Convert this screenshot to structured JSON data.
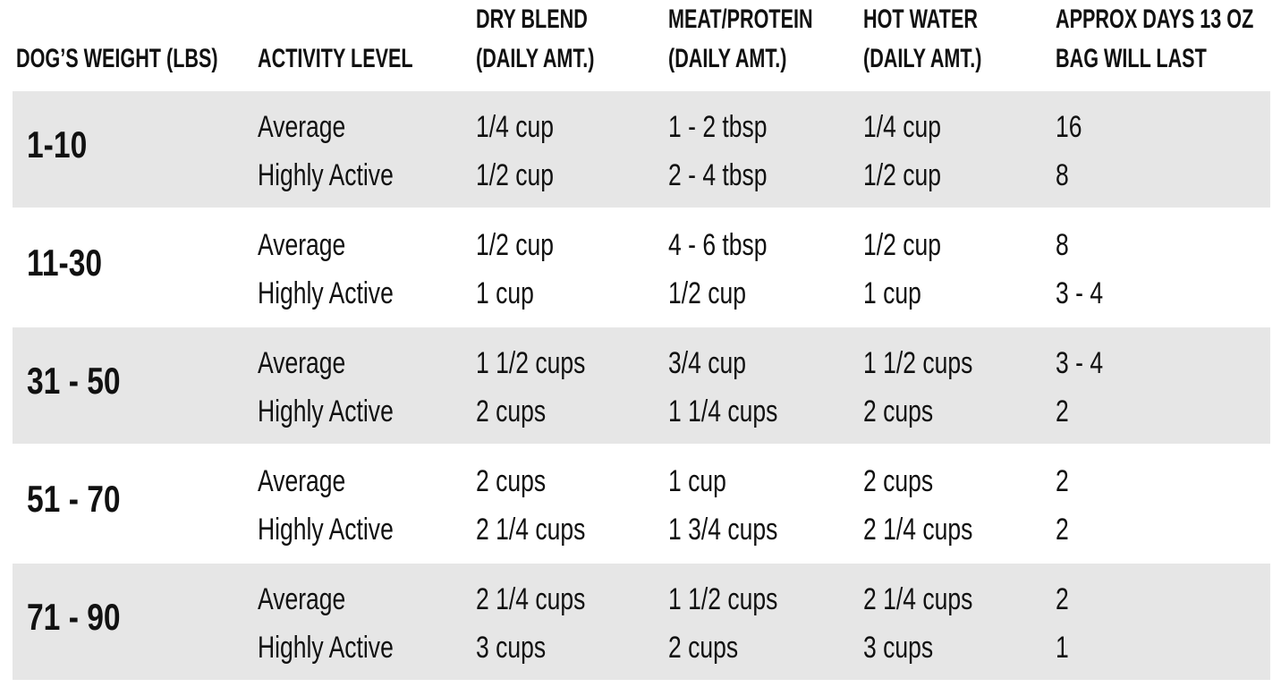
{
  "header": [
    [
      "DOG’S WEIGHT (LBS)"
    ],
    [
      "ACTIVITY LEVEL"
    ],
    [
      "DRY BLEND",
      "(DAILY AMT.)"
    ],
    [
      "MEAT/PROTEIN",
      "(DAILY AMT.)"
    ],
    [
      "HOT WATER",
      "(DAILY AMT.)"
    ],
    [
      "APPROX DAYS 13 OZ",
      "BAG WILL LAST"
    ]
  ],
  "groups": [
    {
      "weight": "1-10",
      "rows": [
        [
          "Average",
          "1/4 cup",
          "1 - 2 tbsp",
          "1/4 cup",
          "16"
        ],
        [
          "Highly Active",
          "1/2 cup",
          "2 - 4 tbsp",
          "1/2 cup",
          "8"
        ]
      ]
    },
    {
      "weight": "11-30",
      "rows": [
        [
          "Average",
          "1/2 cup",
          "4 - 6 tbsp",
          "1/2 cup",
          "8"
        ],
        [
          "Highly Active",
          "1 cup",
          "1/2 cup",
          "1 cup",
          "3 - 4"
        ]
      ]
    },
    {
      "weight": "31 - 50",
      "rows": [
        [
          "Average",
          "1 1/2 cups",
          "3/4 cup",
          "1 1/2 cups",
          "3 - 4"
        ],
        [
          "Highly Active",
          "2 cups",
          "1 1/4 cups",
          "2 cups",
          "2"
        ]
      ]
    },
    {
      "weight": "51 - 70",
      "rows": [
        [
          "Average",
          "2 cups",
          "1 cup",
          "2 cups",
          "2"
        ],
        [
          "Highly Active",
          "2 1/4 cups",
          "1 3/4 cups",
          "2 1/4 cups",
          "2"
        ]
      ]
    },
    {
      "weight": "71 - 90",
      "rows": [
        [
          "Average",
          "2 1/4 cups",
          "1 1/2 cups",
          "2 1/4 cups",
          "2"
        ],
        [
          "Highly Active",
          "3 cups",
          "2 cups",
          "3 cups",
          "1"
        ]
      ]
    }
  ]
}
